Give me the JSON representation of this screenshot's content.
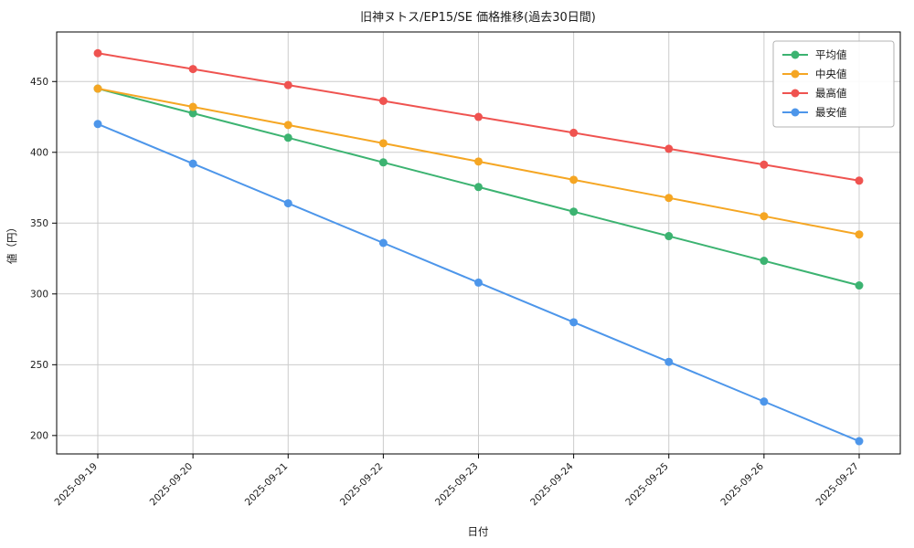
{
  "chart_data": {
    "type": "line",
    "title": "旧神ヌトス/EP15/SE 価格推移(過去30日間)",
    "xlabel": "日付",
    "ylabel": "値（円）",
    "categories": [
      "2025-09-19",
      "2025-09-20",
      "2025-09-21",
      "2025-09-22",
      "2025-09-23",
      "2025-09-24",
      "2025-09-25",
      "2025-09-26",
      "2025-09-27"
    ],
    "series": [
      {
        "key": "average",
        "name": "平均値",
        "color": "#3cb371",
        "values": [
          445,
          427.6,
          410.3,
          392.9,
          375.5,
          358.1,
          340.8,
          323.4,
          306
        ]
      },
      {
        "key": "median",
        "name": "中央値",
        "color": "#f5a623",
        "values": [
          445,
          432.1,
          419.3,
          406.4,
          393.5,
          380.6,
          367.8,
          354.9,
          342
        ]
      },
      {
        "key": "max",
        "name": "最高値",
        "color": "#ef5350",
        "values": [
          470,
          458.8,
          447.5,
          436.3,
          425,
          413.8,
          402.5,
          391.3,
          380
        ]
      },
      {
        "key": "min",
        "name": "最安値",
        "color": "#4d96ea",
        "values": [
          420,
          392,
          364,
          336,
          308,
          280,
          252,
          224,
          196
        ]
      }
    ],
    "yticks": [
      200,
      250,
      300,
      350,
      400,
      450
    ],
    "ylim": [
      187,
      485
    ],
    "grid": true,
    "legend_position": "upper right",
    "frame_color": "#000000",
    "grid_color": "#cccccc"
  }
}
